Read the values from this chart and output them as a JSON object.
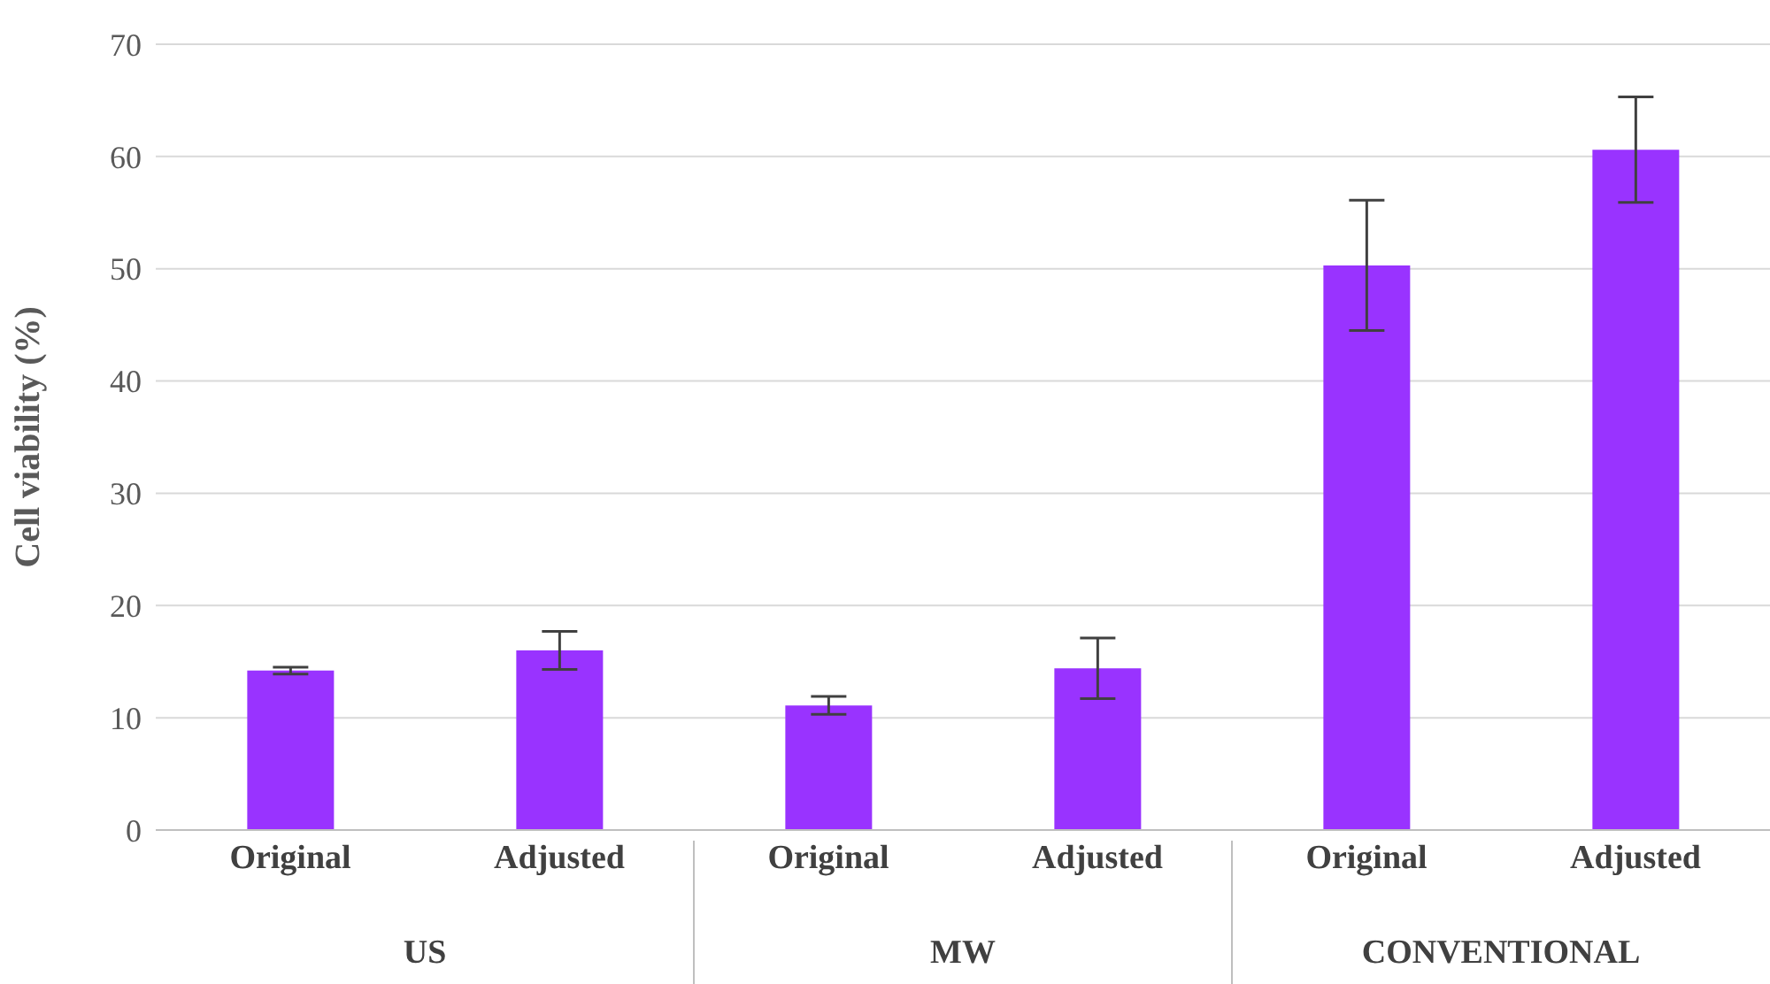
{
  "chart_data": {
    "type": "bar",
    "ylabel": "Cell viability (%)",
    "categories": [
      "Original",
      "Adjusted",
      "Original",
      "Adjusted",
      "Original",
      "Adjusted"
    ],
    "values": [
      14.2,
      16.0,
      11.1,
      14.4,
      50.3,
      60.6
    ],
    "errors": [
      0.3,
      1.7,
      0.8,
      2.7,
      5.8,
      4.7
    ],
    "color": "#9933ff",
    "annotations": [
      "US",
      "MW",
      "CONVENTIONAL"
    ],
    "ylim": [
      0,
      70
    ],
    "yticks": [
      0,
      10,
      20,
      30,
      40,
      50,
      60,
      70
    ],
    "grid": "y"
  }
}
